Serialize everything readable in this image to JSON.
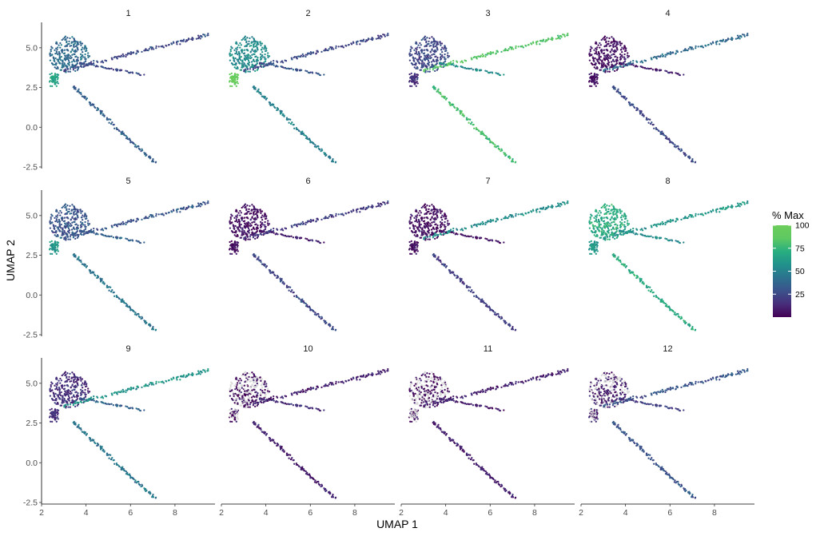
{
  "chart_data": {
    "type": "scatter",
    "panels": [
      "1",
      "2",
      "3",
      "4",
      "5",
      "6",
      "7",
      "8",
      "9",
      "10",
      "11",
      "12"
    ],
    "xlabel": "UMAP 1",
    "ylabel": "UMAP 2",
    "xlim": [
      2.0,
      9.8
    ],
    "ylim": [
      -2.6,
      6.6
    ],
    "xticks": [
      2,
      4,
      6,
      8
    ],
    "yticks": [
      -2.5,
      0.0,
      2.5,
      5.0
    ],
    "ytick_labels": [
      "-2.5",
      "0.0",
      "2.5",
      "5.0"
    ],
    "grid": false,
    "legend": {
      "title": "% Max",
      "placement": "right",
      "range": [
        0,
        100
      ],
      "ticks": [
        25,
        50,
        75,
        100
      ],
      "colormap": "viridis (truncated at green)",
      "colors": [
        "#440154",
        "#472d7b",
        "#3b528b",
        "#2c728e",
        "#21918c",
        "#28ae80",
        "#5ec962",
        "#6ccd5a"
      ]
    },
    "na_color": "#d9d9d9",
    "trajectory_structure": {
      "cluster_center": [
        3.3,
        4.3
      ],
      "branches": [
        {
          "name": "top branch",
          "from": [
            3.0,
            3.6
          ],
          "to": [
            9.5,
            5.8
          ]
        },
        {
          "name": "middle branch",
          "from": [
            3.5,
            4.1
          ],
          "to": [
            6.6,
            3.3
          ]
        },
        {
          "name": "bottom branch",
          "from": [
            3.4,
            2.6
          ],
          "to": [
            7.0,
            -2.2
          ]
        }
      ]
    },
    "panel_patterns": [
      {
        "panel": "1",
        "cluster": 40,
        "top": 25,
        "mid": 25,
        "bottom": 35,
        "lower_left": 65
      },
      {
        "panel": "2",
        "cluster": 55,
        "top": 25,
        "mid": 30,
        "bottom": 50,
        "lower_left": 95
      },
      {
        "panel": "3",
        "cluster": 25,
        "top": 85,
        "mid": 55,
        "bottom": 80,
        "lower_left": 15
      },
      {
        "panel": "4",
        "cluster": 5,
        "top": 40,
        "mid": 10,
        "bottom": 25,
        "lower_left": 5
      },
      {
        "panel": "5",
        "cluster": 30,
        "top": 30,
        "mid": 35,
        "bottom": 45,
        "lower_left": 60
      },
      {
        "panel": "6",
        "cluster": 5,
        "top": 20,
        "mid": 10,
        "bottom": 25,
        "lower_left": 5
      },
      {
        "panel": "7",
        "cluster": 5,
        "top": 55,
        "mid": 5,
        "bottom": 20,
        "lower_left": 5
      },
      {
        "panel": "8",
        "cluster": 70,
        "top": 60,
        "mid": 55,
        "bottom": 70,
        "lower_left": 60
      },
      {
        "panel": "9",
        "cluster": 15,
        "top": 60,
        "mid": 35,
        "bottom": 45,
        "lower_left": 15
      },
      {
        "panel": "10",
        "cluster": 5,
        "top": 10,
        "mid": 15,
        "bottom": 10,
        "lower_left": 5,
        "na_fraction": 0.45
      },
      {
        "panel": "11",
        "cluster": 5,
        "top": 10,
        "mid": 10,
        "bottom": 10,
        "lower_left": 5,
        "na_fraction": 0.45
      },
      {
        "panel": "12",
        "cluster": 10,
        "top": 30,
        "mid": 20,
        "bottom": 30,
        "lower_left": 10,
        "na_fraction": 0.35
      }
    ]
  }
}
